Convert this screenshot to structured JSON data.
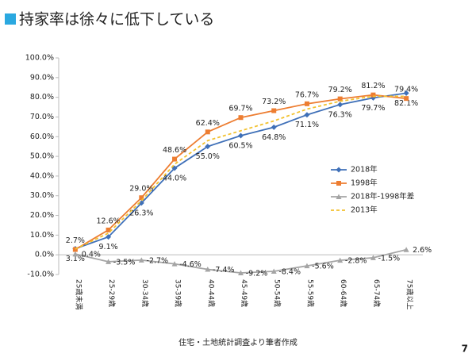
{
  "chart_data": {
    "type": "line",
    "title": "持家率は徐々に低下している",
    "source": "住宅・土地統計調査より筆者作成",
    "page_number": "7",
    "categories": [
      "25歳未満",
      "25-29歳",
      "30-34歳",
      "35-39歳",
      "40-44歳",
      "45-49歳",
      "50-54歳",
      "55-59歳",
      "60-64歳",
      "65-74歳",
      "75歳以上"
    ],
    "ylim": [
      -10,
      100
    ],
    "yticks": [
      {
        "value": -10,
        "label": "-10.0%"
      },
      {
        "value": 0,
        "label": "0.0%"
      },
      {
        "value": 10,
        "label": "10.0%"
      },
      {
        "value": 20,
        "label": "20.0%"
      },
      {
        "value": 30,
        "label": "30.0%"
      },
      {
        "value": 40,
        "label": "40.0%"
      },
      {
        "value": 50,
        "label": "50.0%"
      },
      {
        "value": 60,
        "label": "60.0%"
      },
      {
        "value": 70,
        "label": "70.0%"
      },
      {
        "value": 80,
        "label": "80.0%"
      },
      {
        "value": 90,
        "label": "90.0%"
      },
      {
        "value": 100,
        "label": "100.0%"
      }
    ],
    "grid": false,
    "legend": "right",
    "series": [
      {
        "name": "2018年",
        "color": "#3f70b8",
        "marker": "diamond",
        "values": [
          3.1,
          9.1,
          26.3,
          44.0,
          55.0,
          60.5,
          64.8,
          71.1,
          76.3,
          79.7,
          82.1
        ],
        "value_labels": [
          "3.1%",
          "9.1%",
          "26.3%",
          "44.0%",
          "55.0%",
          "60.5%",
          "64.8%",
          "71.1%",
          "76.3%",
          "79.7%",
          "82.1%"
        ]
      },
      {
        "name": "1998年",
        "color": "#ed7d31",
        "marker": "square",
        "values": [
          2.7,
          12.6,
          29.0,
          48.6,
          62.4,
          69.7,
          73.2,
          76.7,
          79.2,
          81.2,
          79.4
        ],
        "value_labels": [
          "2.7%",
          "12.6%",
          "29.0%",
          "48.6%",
          "62.4%",
          "69.7%",
          "73.2%",
          "76.7%",
          "79.2%",
          "81.2%",
          "79.4%"
        ]
      },
      {
        "name": "2018年-1998年差",
        "color": "#a5a5a5",
        "marker": "triangle",
        "values": [
          0.4,
          -3.5,
          -2.7,
          -4.6,
          -7.4,
          -9.2,
          -8.4,
          -5.6,
          -2.8,
          -1.5,
          2.6
        ],
        "value_labels": [
          "0.4%",
          "-3.5%",
          "-2.7%",
          "-4.6%",
          "-7.4%",
          "-9.2%",
          "-8.4%",
          "-5.6%",
          "-2.8%",
          "-1.5%",
          "2.6%"
        ]
      },
      {
        "name": "2013年",
        "color": "#f2c12e",
        "marker": "none",
        "dashed": true,
        "values": [
          2.9,
          11.0,
          27.5,
          46.0,
          58.0,
          63.0,
          68.0,
          74.0,
          78.0,
          80.5,
          80.5
        ]
      }
    ]
  }
}
